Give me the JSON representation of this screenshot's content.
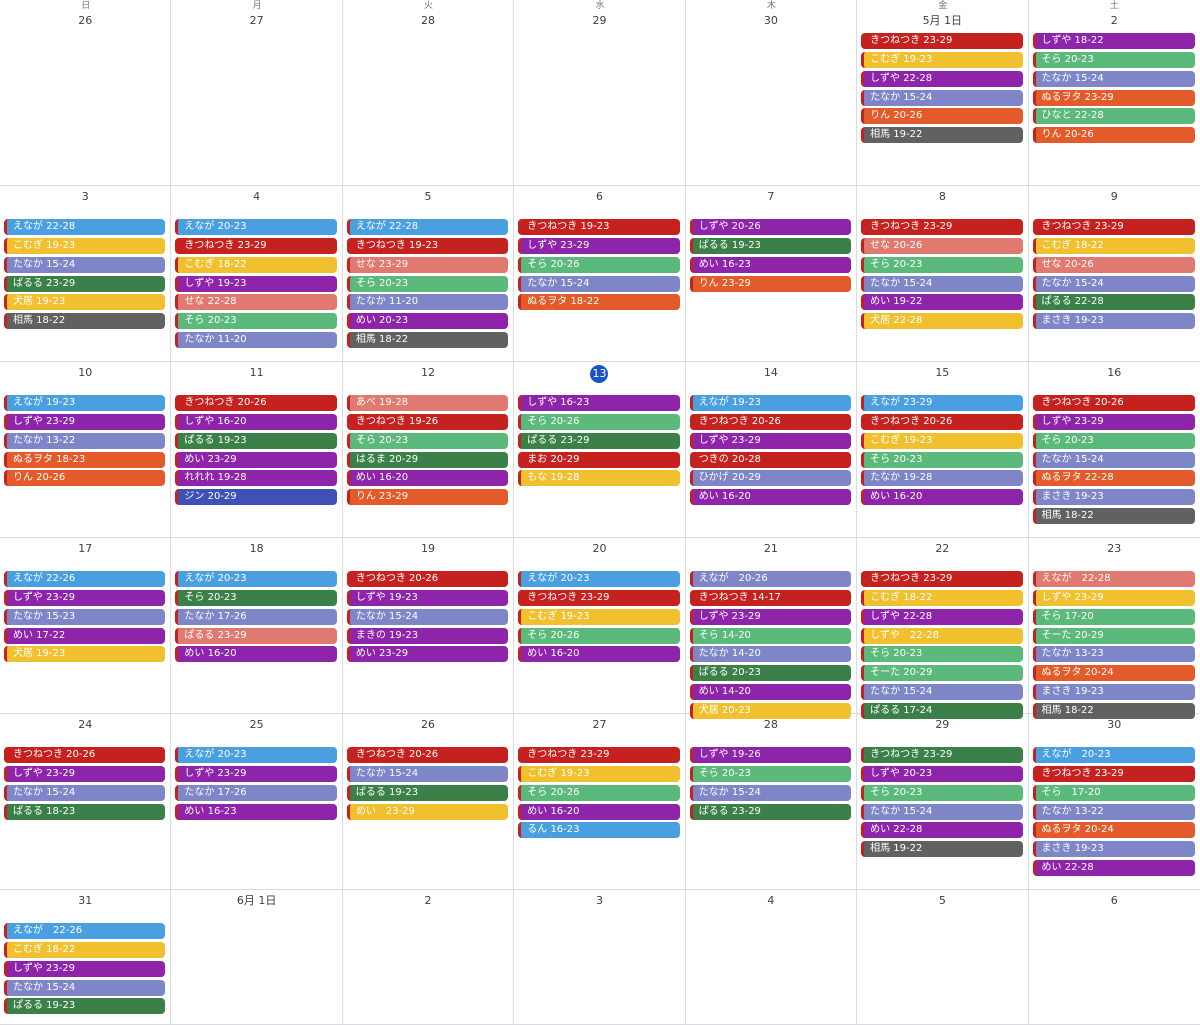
{
  "weekdays": [
    "日",
    "月",
    "火",
    "水",
    "木",
    "金",
    "土"
  ],
  "colors": {
    "red": "#c5221f",
    "yellow": "#f0c02f",
    "purple": "#8e24aa",
    "lavender": "#7e86c8",
    "orange": "#e35b2a",
    "graphite": "#616161",
    "green": "#5bb97b",
    "blue": "#4a9fe0",
    "salmon": "#e07a70",
    "darkgreen": "#3b8048",
    "indigo": "#3f51b5",
    "today": "#1a53c9"
  },
  "weeks": [
    [
      {
        "day": "26",
        "events": []
      },
      {
        "day": "27",
        "events": []
      },
      {
        "day": "28",
        "events": []
      },
      {
        "day": "29",
        "events": []
      },
      {
        "day": "30",
        "events": []
      },
      {
        "day": "5月 1日",
        "events": [
          {
            "t": "きつねつき 23-29",
            "c": "red"
          },
          {
            "t": "こむぎ 19-23",
            "c": "yellow"
          },
          {
            "t": "しずや 22-28",
            "c": "purple"
          },
          {
            "t": "たなか 15-24",
            "c": "lavender"
          },
          {
            "t": "りん 20-26",
            "c": "orange"
          },
          {
            "t": "相馬 19-22",
            "c": "graphite"
          }
        ]
      },
      {
        "day": "2",
        "events": [
          {
            "t": "しずや 18-22",
            "c": "purple"
          },
          {
            "t": "そら 20-23",
            "c": "green"
          },
          {
            "t": "たなか 15-24",
            "c": "lavender"
          },
          {
            "t": "ぬるヲタ 23-29",
            "c": "orange"
          },
          {
            "t": "ひなと 22-28",
            "c": "green"
          },
          {
            "t": "りん 20-26",
            "c": "orange"
          }
        ]
      }
    ],
    [
      {
        "day": "3",
        "events": [
          {
            "t": "えなが 22-28",
            "c": "blue"
          },
          {
            "t": "こむぎ 19-23",
            "c": "yellow"
          },
          {
            "t": "たなか 15-24",
            "c": "lavender"
          },
          {
            "t": "ぱるる 23-29",
            "c": "darkgreen"
          },
          {
            "t": "犬居 19-23",
            "c": "yellow"
          },
          {
            "t": "相馬 18-22",
            "c": "graphite"
          }
        ]
      },
      {
        "day": "4",
        "events": [
          {
            "t": "えなが 20-23",
            "c": "blue"
          },
          {
            "t": "きつねつき 23-29",
            "c": "red"
          },
          {
            "t": "こむぎ 18-22",
            "c": "yellow"
          },
          {
            "t": "しずや 19-23",
            "c": "purple"
          },
          {
            "t": "せな 22-28",
            "c": "salmon"
          },
          {
            "t": "そら 20-23",
            "c": "green"
          },
          {
            "t": "たなか 11-20",
            "c": "lavender"
          }
        ]
      },
      {
        "day": "5",
        "events": [
          {
            "t": "えなが 22-28",
            "c": "blue"
          },
          {
            "t": "きつねつき 19-23",
            "c": "red"
          },
          {
            "t": "せな 23-29",
            "c": "salmon"
          },
          {
            "t": "そら 20-23",
            "c": "green"
          },
          {
            "t": "たなか 11-20",
            "c": "lavender"
          },
          {
            "t": "めい 20-23",
            "c": "purple"
          },
          {
            "t": "相馬 18-22",
            "c": "graphite"
          }
        ]
      },
      {
        "day": "6",
        "events": [
          {
            "t": "きつねつき 19-23",
            "c": "red"
          },
          {
            "t": "しずや 23-29",
            "c": "purple"
          },
          {
            "t": "そら 20-26",
            "c": "green"
          },
          {
            "t": "たなか 15-24",
            "c": "lavender"
          },
          {
            "t": "ぬるヲタ 18-22",
            "c": "orange"
          }
        ]
      },
      {
        "day": "7",
        "events": [
          {
            "t": "しずや 20-26",
            "c": "purple"
          },
          {
            "t": "ぱるる 19-23",
            "c": "darkgreen"
          },
          {
            "t": "めい 16-23",
            "c": "purple"
          },
          {
            "t": "りん 23-29",
            "c": "orange"
          }
        ]
      },
      {
        "day": "8",
        "events": [
          {
            "t": "きつねつき 23-29",
            "c": "red"
          },
          {
            "t": "せな 20-26",
            "c": "salmon"
          },
          {
            "t": "そら 20-23",
            "c": "green"
          },
          {
            "t": "たなか 15-24",
            "c": "lavender"
          },
          {
            "t": "めい 19-22",
            "c": "purple"
          },
          {
            "t": "犬居 22-28",
            "c": "yellow"
          }
        ]
      },
      {
        "day": "9",
        "events": [
          {
            "t": "きつねつき 23-29",
            "c": "red"
          },
          {
            "t": "こむぎ 18-22",
            "c": "yellow"
          },
          {
            "t": "せな 20-26",
            "c": "salmon"
          },
          {
            "t": "たなか 15-24",
            "c": "lavender"
          },
          {
            "t": "ぱるる 22-28",
            "c": "darkgreen"
          },
          {
            "t": "まさき 19-23",
            "c": "lavender"
          }
        ]
      }
    ],
    [
      {
        "day": "10",
        "events": [
          {
            "t": "えなが 19-23",
            "c": "blue"
          },
          {
            "t": "しずや 23-29",
            "c": "purple"
          },
          {
            "t": "たなか 13-22",
            "c": "lavender"
          },
          {
            "t": "ぬるヲタ 18-23",
            "c": "orange"
          },
          {
            "t": "りん 20-26",
            "c": "orange"
          }
        ]
      },
      {
        "day": "11",
        "events": [
          {
            "t": "きつねつき 20-26",
            "c": "red"
          },
          {
            "t": "しずや 16-20",
            "c": "purple"
          },
          {
            "t": "ぱるる 19-23",
            "c": "darkgreen"
          },
          {
            "t": "めい 23-29",
            "c": "purple"
          },
          {
            "t": "れれれ 19-28",
            "c": "purple"
          },
          {
            "t": "ジン 20-29",
            "c": "indigo"
          }
        ]
      },
      {
        "day": "12",
        "events": [
          {
            "t": "あべ 19-28",
            "c": "salmon"
          },
          {
            "t": "きつねつき 19-26",
            "c": "red"
          },
          {
            "t": "そら 20-23",
            "c": "green"
          },
          {
            "t": "はるま 20-29",
            "c": "darkgreen"
          },
          {
            "t": "めい 16-20",
            "c": "purple"
          },
          {
            "t": "りん 23-29",
            "c": "orange"
          }
        ]
      },
      {
        "day": "13",
        "today": true,
        "events": [
          {
            "t": "しずや 16-23",
            "c": "purple"
          },
          {
            "t": "そら 20-26",
            "c": "green"
          },
          {
            "t": "ぱるる 23-29",
            "c": "darkgreen"
          },
          {
            "t": "まお 20-29",
            "c": "red"
          },
          {
            "t": "もな 19-28",
            "c": "yellow"
          }
        ]
      },
      {
        "day": "14",
        "events": [
          {
            "t": "えなが 19-23",
            "c": "blue"
          },
          {
            "t": "きつねつき 20-26",
            "c": "red"
          },
          {
            "t": "しずや 23-29",
            "c": "purple"
          },
          {
            "t": "つきの 20-28",
            "c": "red"
          },
          {
            "t": "ひかげ 20-29",
            "c": "lavender"
          },
          {
            "t": "めい 16-20",
            "c": "purple"
          }
        ]
      },
      {
        "day": "15",
        "events": [
          {
            "t": "えなが 23-29",
            "c": "blue"
          },
          {
            "t": "きつねつき 20-26",
            "c": "red"
          },
          {
            "t": "こむぎ 19-23",
            "c": "yellow"
          },
          {
            "t": "そら 20-23",
            "c": "green"
          },
          {
            "t": "たなか 19-28",
            "c": "lavender"
          },
          {
            "t": "めい 16-20",
            "c": "purple"
          }
        ]
      },
      {
        "day": "16",
        "events": [
          {
            "t": "きつねつき 20-26",
            "c": "red"
          },
          {
            "t": "しずや 23-29",
            "c": "purple"
          },
          {
            "t": "そら 20-23",
            "c": "green"
          },
          {
            "t": "たなか 15-24",
            "c": "lavender"
          },
          {
            "t": "ぬるヲタ 22-28",
            "c": "orange"
          },
          {
            "t": "まさき 19-23",
            "c": "lavender"
          },
          {
            "t": "相馬 18-22",
            "c": "graphite"
          }
        ]
      }
    ],
    [
      {
        "day": "17",
        "events": [
          {
            "t": "えなが 22-26",
            "c": "blue"
          },
          {
            "t": "しずや 23-29",
            "c": "purple"
          },
          {
            "t": "たなか 15-23",
            "c": "lavender"
          },
          {
            "t": "めい 17-22",
            "c": "purple"
          },
          {
            "t": "犬居 19-23",
            "c": "yellow"
          }
        ]
      },
      {
        "day": "18",
        "events": [
          {
            "t": "えなが 20-23",
            "c": "blue"
          },
          {
            "t": "そら 20-23",
            "c": "darkgreen"
          },
          {
            "t": "たなか 17-26",
            "c": "lavender"
          },
          {
            "t": "ぱるる 23-29",
            "c": "salmon"
          },
          {
            "t": "めい 16-20",
            "c": "purple"
          }
        ]
      },
      {
        "day": "19",
        "events": [
          {
            "t": "きつねつき 20-26",
            "c": "red"
          },
          {
            "t": "しずや 19-23",
            "c": "purple"
          },
          {
            "t": "たなか 15-24",
            "c": "lavender"
          },
          {
            "t": "まきの 19-23",
            "c": "purple"
          },
          {
            "t": "めい 23-29",
            "c": "purple"
          }
        ]
      },
      {
        "day": "20",
        "events": [
          {
            "t": "えなが 20-23",
            "c": "blue"
          },
          {
            "t": "きつねつき 23-29",
            "c": "red"
          },
          {
            "t": "こむぎ 19-23",
            "c": "yellow"
          },
          {
            "t": "そら 20-26",
            "c": "green"
          },
          {
            "t": "めい 16-20",
            "c": "purple"
          }
        ]
      },
      {
        "day": "21",
        "events": [
          {
            "t": "えなが　20-26",
            "c": "lavender"
          },
          {
            "t": "きつねつき 14-17",
            "c": "red"
          },
          {
            "t": "しずや 23-29",
            "c": "purple"
          },
          {
            "t": "そら 14-20",
            "c": "green"
          },
          {
            "t": "たなか 14-20",
            "c": "lavender"
          },
          {
            "t": "ぱるる 20-23",
            "c": "darkgreen"
          },
          {
            "t": "めい 14-20",
            "c": "purple"
          },
          {
            "t": "犬居 20-23",
            "c": "yellow"
          }
        ]
      },
      {
        "day": "22",
        "events": [
          {
            "t": "きつねつき 23-29",
            "c": "red"
          },
          {
            "t": "こむぎ 18-22",
            "c": "yellow"
          },
          {
            "t": "しずや 22-28",
            "c": "purple"
          },
          {
            "t": "しずや　22-28",
            "c": "yellow"
          },
          {
            "t": "そら 20-23",
            "c": "green"
          },
          {
            "t": "そーた 20-29",
            "c": "green"
          },
          {
            "t": "たなか 15-24",
            "c": "lavender"
          },
          {
            "t": "ぱるる 17-24",
            "c": "darkgreen"
          }
        ]
      },
      {
        "day": "23",
        "events": [
          {
            "t": "えなが　22-28",
            "c": "salmon"
          },
          {
            "t": "しずや 23-29",
            "c": "yellow"
          },
          {
            "t": "そら 17-20",
            "c": "green"
          },
          {
            "t": "そーた 20-29",
            "c": "green"
          },
          {
            "t": "たなか 13-23",
            "c": "lavender"
          },
          {
            "t": "ぬるヲタ 20-24",
            "c": "orange"
          },
          {
            "t": "まさき 19-23",
            "c": "lavender"
          },
          {
            "t": "相馬 18-22",
            "c": "graphite"
          }
        ]
      }
    ],
    [
      {
        "day": "24",
        "events": [
          {
            "t": "きつねつき 20-26",
            "c": "red"
          },
          {
            "t": "しずや 23-29",
            "c": "purple"
          },
          {
            "t": "たなか 15-24",
            "c": "lavender"
          },
          {
            "t": "ぱるる 18-23",
            "c": "darkgreen"
          }
        ]
      },
      {
        "day": "25",
        "events": [
          {
            "t": "えなが 20-23",
            "c": "blue"
          },
          {
            "t": "しずや 23-29",
            "c": "purple"
          },
          {
            "t": "たなか 17-26",
            "c": "lavender"
          },
          {
            "t": "めい 16-23",
            "c": "purple"
          }
        ]
      },
      {
        "day": "26",
        "events": [
          {
            "t": "きつねつき 20-26",
            "c": "red"
          },
          {
            "t": "たなか 15-24",
            "c": "lavender"
          },
          {
            "t": "ぱるる 19-23",
            "c": "darkgreen"
          },
          {
            "t": "めい　23-29",
            "c": "yellow"
          }
        ]
      },
      {
        "day": "27",
        "events": [
          {
            "t": "きつねつき 23-29",
            "c": "red"
          },
          {
            "t": "こむぎ 19-23",
            "c": "yellow"
          },
          {
            "t": "そら 20-26",
            "c": "green"
          },
          {
            "t": "めい 16-20",
            "c": "purple"
          },
          {
            "t": "るん 16-23",
            "c": "blue"
          }
        ]
      },
      {
        "day": "28",
        "events": [
          {
            "t": "しずや 19-26",
            "c": "purple"
          },
          {
            "t": "そら 20-23",
            "c": "green"
          },
          {
            "t": "たなか 15-24",
            "c": "lavender"
          },
          {
            "t": "ぱるる 23-29",
            "c": "darkgreen"
          }
        ]
      },
      {
        "day": "29",
        "events": [
          {
            "t": "きつねつき 23-29",
            "c": "darkgreen"
          },
          {
            "t": "しずや 20-23",
            "c": "purple"
          },
          {
            "t": "そら 20-23",
            "c": "green"
          },
          {
            "t": "たなか 15-24",
            "c": "lavender"
          },
          {
            "t": "めい 22-28",
            "c": "purple"
          },
          {
            "t": "相馬 19-22",
            "c": "graphite"
          }
        ]
      },
      {
        "day": "30",
        "events": [
          {
            "t": "えなが　20-23",
            "c": "blue"
          },
          {
            "t": "きつねつき 23-29",
            "c": "red"
          },
          {
            "t": "そら　17-20",
            "c": "green"
          },
          {
            "t": "たなか 13-22",
            "c": "lavender"
          },
          {
            "t": "ぬるヲタ 20-24",
            "c": "orange"
          },
          {
            "t": "まさき 19-23",
            "c": "lavender"
          },
          {
            "t": "めい 22-28",
            "c": "purple"
          }
        ]
      }
    ],
    [
      {
        "day": "31",
        "events": [
          {
            "t": "えなが　22-26",
            "c": "blue"
          },
          {
            "t": "こむぎ 18-22",
            "c": "yellow"
          },
          {
            "t": "しずや 23-29",
            "c": "purple"
          },
          {
            "t": "たなか 15-24",
            "c": "lavender"
          },
          {
            "t": "ぱるる 19-23",
            "c": "darkgreen"
          }
        ]
      },
      {
        "day": "6月 1日",
        "events": []
      },
      {
        "day": "2",
        "events": []
      },
      {
        "day": "3",
        "events": []
      },
      {
        "day": "4",
        "events": []
      },
      {
        "day": "5",
        "events": []
      },
      {
        "day": "6",
        "events": []
      }
    ]
  ]
}
